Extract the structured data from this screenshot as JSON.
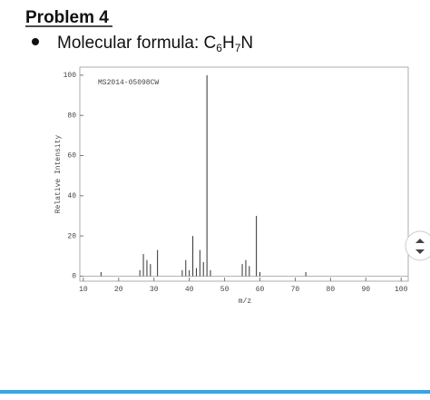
{
  "header": {
    "title": "Problem 4",
    "formula": {
      "label": "Molecular formula: C",
      "c_count": "6",
      "h": "H",
      "h_count": "7",
      "n": "N"
    }
  },
  "chart_data": {
    "type": "bar",
    "annotation": "MS2014-05098CW",
    "x_label": "m/z",
    "y_label": "Relative Intensity",
    "x": [
      15,
      26,
      27,
      28,
      29,
      31,
      38,
      39,
      40,
      41,
      42,
      43,
      44,
      45,
      46,
      55,
      56,
      57,
      59,
      60,
      73
    ],
    "values": [
      2,
      3,
      11,
      8,
      6,
      13,
      3,
      8,
      3,
      20,
      4,
      13,
      7,
      100,
      3,
      6,
      8,
      5,
      30,
      2,
      2
    ],
    "color": "#333333",
    "xlim": [
      9,
      102
    ],
    "xticks": [
      10,
      20,
      30,
      40,
      50,
      60,
      70,
      80,
      90,
      100
    ],
    "ylim": [
      -2.5,
      104
    ],
    "yticks": [
      0,
      20,
      40,
      60,
      80,
      100
    ]
  }
}
